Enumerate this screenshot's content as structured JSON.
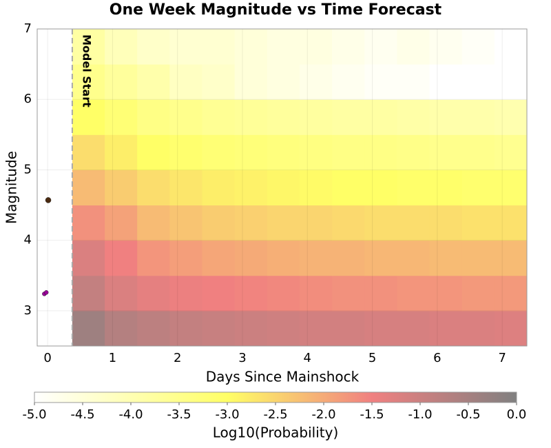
{
  "chart_data": {
    "type": "heatmap",
    "title": "One Week Magnitude vs Time Forecast",
    "x_label": "Days Since Mainshock",
    "y_label": "Magnitude",
    "xlim": [
      -0.16,
      7.38
    ],
    "ylim": [
      2.5,
      7
    ],
    "xticks": [
      0,
      1,
      2,
      3,
      4,
      5,
      6,
      7
    ],
    "yticks": [
      3,
      4,
      5,
      6,
      7
    ],
    "grid": true,
    "x_edges": [
      0.38,
      0.88,
      1.38,
      1.88,
      2.38,
      2.88,
      3.38,
      3.88,
      4.38,
      4.88,
      5.38,
      5.88,
      6.38,
      6.88,
      7.38
    ],
    "y_edges": [
      2.5,
      3,
      3.5,
      4,
      4.5,
      5,
      5.5,
      6,
      6.5,
      7
    ],
    "values": [
      [
        -0.4,
        -0.7,
        -0.8,
        -0.9,
        -0.95,
        -1.0,
        -1.05,
        -1.1,
        -1.1,
        -1.15,
        -1.15,
        -1.2,
        -1.2,
        -1.25
      ],
      [
        -0.9,
        -1.2,
        -1.35,
        -1.45,
        -1.5,
        -1.55,
        -1.6,
        -1.65,
        -1.7,
        -1.7,
        -1.75,
        -1.75,
        -1.8,
        -1.8
      ],
      [
        -1.2,
        -1.5,
        -1.75,
        -1.85,
        -1.95,
        -2.0,
        -2.05,
        -2.1,
        -2.1,
        -2.15,
        -2.15,
        -2.2,
        -2.2,
        -2.2
      ],
      [
        -1.7,
        -1.9,
        -2.2,
        -2.3,
        -2.4,
        -2.45,
        -2.5,
        -2.5,
        -2.55,
        -2.6,
        -2.6,
        -2.6,
        -2.65,
        -2.65
      ],
      [
        -2.2,
        -2.4,
        -2.6,
        -2.7,
        -2.8,
        -2.85,
        -2.9,
        -2.95,
        -3.0,
        -3.0,
        -3.05,
        -3.05,
        -3.1,
        -3.1
      ],
      [
        -2.6,
        -2.8,
        -3.0,
        -3.1,
        -3.2,
        -3.25,
        -3.3,
        -3.35,
        -3.4,
        -3.4,
        -3.45,
        -3.5,
        -3.5,
        -3.55
      ],
      [
        -3.0,
        -3.2,
        -3.4,
        -3.5,
        -3.6,
        -3.65,
        -3.7,
        -3.75,
        -3.8,
        -3.8,
        -3.85,
        -3.9,
        -3.9,
        -3.95
      ],
      [
        -3.5,
        -3.7,
        -3.9,
        -4.2,
        -4.3,
        -4.5,
        -4.6,
        -4.7,
        -4.8,
        -4.9,
        -4.9,
        -5.0,
        -5.0,
        -5.0
      ],
      [
        -3.8,
        -4.1,
        -4.3,
        -4.4,
        -4.4,
        -4.5,
        -4.6,
        -4.6,
        -4.7,
        -4.8,
        -4.7,
        -4.8,
        -4.9,
        -5.0
      ]
    ],
    "colorscale": [
      [
        -5,
        "#ffffff"
      ],
      [
        -3,
        "#ffff66"
      ],
      [
        -1.5,
        "#f08080"
      ],
      [
        0,
        "#808080"
      ]
    ],
    "colorbar": {
      "label": "Log10(Probability)",
      "lim": [
        -5,
        0
      ],
      "ticks": [
        {
          "value": -5,
          "label": "-5.0"
        },
        {
          "value": -4.5,
          "label": "-4.5"
        },
        {
          "value": -4,
          "label": "-4.0"
        },
        {
          "value": -3.5,
          "label": "-3.5"
        },
        {
          "value": -3,
          "label": "-3.0"
        },
        {
          "value": -2.5,
          "label": "-2.5"
        },
        {
          "value": -2,
          "label": "-2.0"
        },
        {
          "value": -1.5,
          "label": "-1.5"
        },
        {
          "value": -1,
          "label": "-1.0"
        },
        {
          "value": -0.5,
          "label": "-0.5"
        },
        {
          "value": 0,
          "label": "0.0"
        }
      ]
    },
    "annotation": {
      "text": "Model Start",
      "x": 0.38
    },
    "scatter_series": [
      {
        "color": "#4a2a10",
        "x": [
          0.01
        ],
        "values": [
          4.57
        ]
      },
      {
        "color": "#990099",
        "x": [
          -0.05,
          -0.02
        ],
        "values": [
          3.24,
          3.26
        ]
      }
    ]
  }
}
